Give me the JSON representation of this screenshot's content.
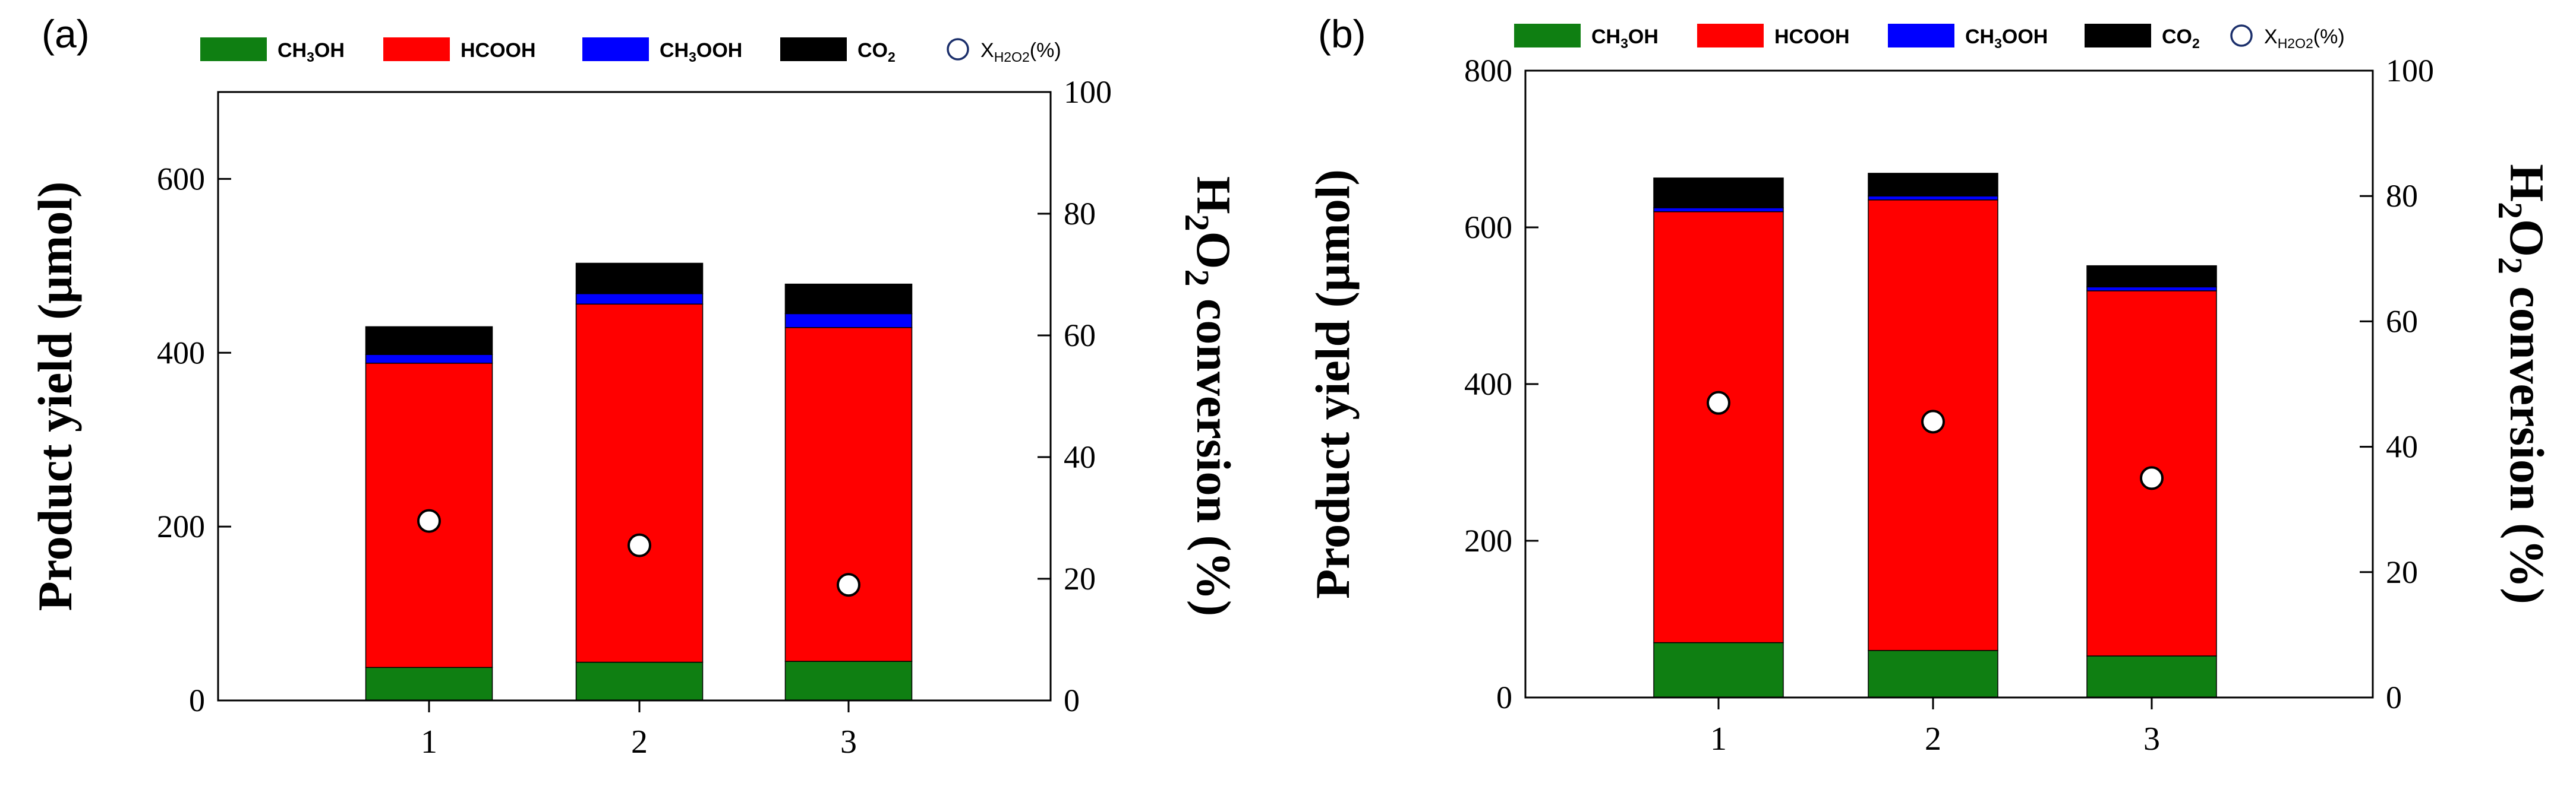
{
  "figure": {
    "legend_labels": {
      "ch3oh": {
        "main": "CH",
        "sub": "3",
        "tail": "OH"
      },
      "hcooh": {
        "main": "HCOOH"
      },
      "ch3ooh": {
        "main": "CH",
        "sub": "3",
        "tail": "OOH"
      },
      "co2": {
        "main": "CO",
        "sub": "2"
      },
      "xh2o2": {
        "main": "X",
        "sub": "H2O2",
        "tail": "(%)"
      }
    },
    "y_label": "Product yield (μmol)",
    "y2_label": {
      "p1": "H",
      "s1": "2",
      "p2": "O",
      "s2": "2",
      "p3": " conversion (%)"
    }
  },
  "colors": {
    "ch3oh": "#0f7f12",
    "hcooh": "#ff0000",
    "ch3ooh": "#0000ff",
    "co2": "#000000",
    "marker_fill": "#ffffff",
    "axis": "#000000"
  },
  "chart_data": [
    {
      "panel_label": "(a)",
      "type": "bar",
      "stacked": true,
      "categories": [
        "1",
        "2",
        "3"
      ],
      "series": [
        {
          "name": "CH3OH",
          "key": "ch3oh",
          "values": [
            38,
            44,
            45
          ]
        },
        {
          "name": "HCOOH",
          "key": "hcooh",
          "values": [
            350,
            412,
            384
          ]
        },
        {
          "name": "CH3OOH",
          "key": "ch3ooh",
          "values": [
            10,
            12,
            16
          ]
        },
        {
          "name": "CO2",
          "key": "co2",
          "values": [
            32,
            35,
            34
          ]
        }
      ],
      "secondary_series": {
        "name": "XH2O2(%)",
        "type": "scatter",
        "values": [
          29.5,
          25.5,
          19
        ]
      },
      "ylim": [
        0,
        700
      ],
      "yticks": [
        0,
        200,
        400,
        600
      ],
      "y2lim": [
        0,
        100
      ],
      "y2ticks": [
        0,
        20,
        40,
        60,
        80,
        100
      ]
    },
    {
      "panel_label": "(b)",
      "type": "bar",
      "stacked": true,
      "categories": [
        "1",
        "2",
        "3"
      ],
      "series": [
        {
          "name": "CH3OH",
          "key": "ch3oh",
          "values": [
            70,
            60,
            53
          ]
        },
        {
          "name": "HCOOH",
          "key": "hcooh",
          "values": [
            550,
            575,
            466
          ]
        },
        {
          "name": "CH3OOH",
          "key": "ch3ooh",
          "values": [
            5,
            5,
            5
          ]
        },
        {
          "name": "CO2",
          "key": "co2",
          "values": [
            38,
            29,
            27
          ]
        }
      ],
      "secondary_series": {
        "name": "XH2O2(%)",
        "type": "scatter",
        "values": [
          47,
          44,
          35
        ]
      },
      "ylim": [
        0,
        800
      ],
      "yticks": [
        0,
        200,
        400,
        600,
        800
      ],
      "y2lim": [
        0,
        100
      ],
      "y2ticks": [
        0,
        20,
        40,
        60,
        80,
        100
      ]
    }
  ]
}
